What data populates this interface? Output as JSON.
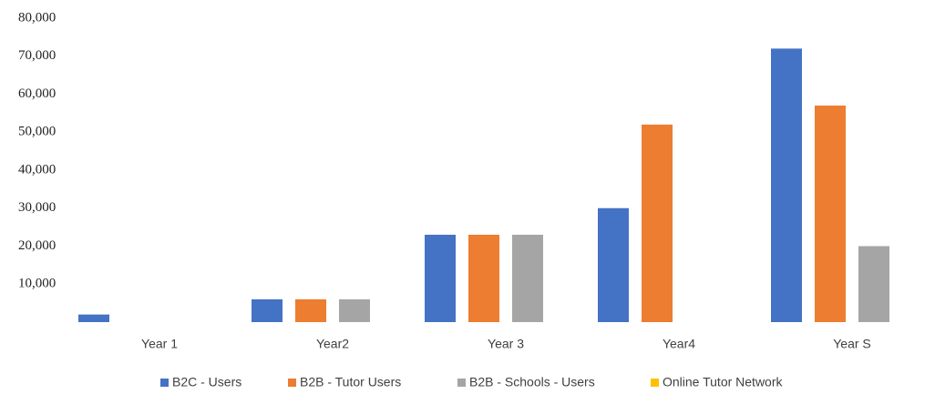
{
  "chart_data": {
    "type": "bar",
    "categories": [
      "Year 1",
      "Year2",
      "Year 3",
      "Year4",
      "Year S"
    ],
    "series": [
      {
        "name": "B2C - Users",
        "color": "#4472c4",
        "values": [
          2000,
          6000,
          23000,
          30000,
          72000
        ]
      },
      {
        "name": "B2B - Tutor Users",
        "color": "#ed7d31",
        "values": [
          null,
          6000,
          23000,
          52000,
          57000
        ]
      },
      {
        "name": "B2B - Schools - Users",
        "color": "#a5a5a5",
        "values": [
          null,
          6000,
          23000,
          null,
          20000
        ]
      },
      {
        "name": "Online Tutor  Network",
        "color": "#ffc000",
        "values": [
          null,
          null,
          null,
          null,
          null
        ]
      }
    ],
    "ylim": [
      0,
      80000
    ],
    "yticks": [
      {
        "value": 10000,
        "label": "10,000"
      },
      {
        "value": 20000,
        "label": "20,000"
      },
      {
        "value": 30000,
        "label": "30,000"
      },
      {
        "value": 40000,
        "label": "40,000"
      },
      {
        "value": 50000,
        "label": "50,000"
      },
      {
        "value": 60000,
        "label": "60,000"
      },
      {
        "value": 70000,
        "label": "70,000"
      },
      {
        "value": 80000,
        "label": "80,000"
      }
    ],
    "grid": false,
    "legend": "bottom"
  }
}
